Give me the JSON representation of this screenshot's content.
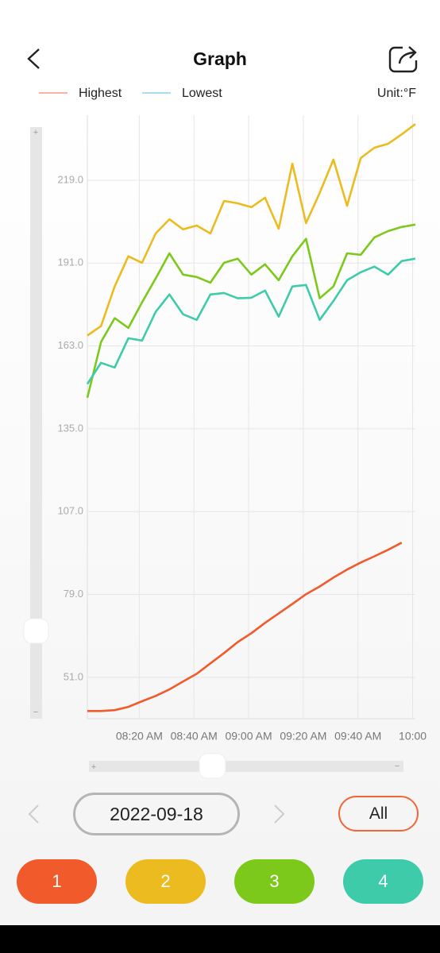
{
  "header": {
    "title": "Graph"
  },
  "legend": {
    "items": [
      {
        "label": "Highest",
        "color": "#f9b3a0"
      },
      {
        "label": "Lowest",
        "color": "#a9dcef"
      }
    ],
    "unit": "Unit:°F"
  },
  "chart_data": {
    "type": "line",
    "x": [
      "08:01 AM",
      "08:06 AM",
      "08:11 AM",
      "08:16 AM",
      "08:21 AM",
      "08:26 AM",
      "08:31 AM",
      "08:36 AM",
      "08:41 AM",
      "08:46 AM",
      "08:51 AM",
      "08:56 AM",
      "09:01 AM",
      "09:06 AM",
      "09:11 AM",
      "09:16 AM",
      "09:21 AM",
      "09:26 AM",
      "09:31 AM",
      "09:36 AM",
      "09:41 AM",
      "09:46 AM",
      "09:51 AM",
      "09:56 AM",
      "10:01 AM"
    ],
    "xlim": [
      "08:01 AM",
      "10:01 AM"
    ],
    "xticks": [
      "08:20 AM",
      "08:40 AM",
      "09:00 AM",
      "09:20 AM",
      "09:40 AM",
      {
        "value": "10:00 AM",
        "label": "10:00"
      }
    ],
    "ylim": [
      37,
      241
    ],
    "yticks": [
      {
        "value": 51,
        "label": "51.0"
      },
      {
        "value": 79,
        "label": "79.0"
      },
      {
        "value": 107,
        "label": "107.0"
      },
      {
        "value": 135,
        "label": "135.0"
      },
      {
        "value": 163,
        "label": "163.0"
      },
      {
        "value": 191,
        "label": "191.0"
      },
      {
        "value": 219,
        "label": "219.0"
      }
    ],
    "grid": true,
    "series": [
      {
        "name": "1",
        "color": "#f15a2b",
        "values": [
          39.6,
          39.6,
          39.9,
          41.0,
          42.9,
          44.7,
          46.9,
          49.6,
          52.2,
          55.7,
          59.2,
          62.9,
          65.9,
          69.4,
          72.6,
          75.8,
          79.1,
          81.7,
          84.7,
          87.4,
          89.8,
          91.9,
          94.1,
          96.5,
          null
        ]
      },
      {
        "name": "2",
        "color": "#ecbb1f",
        "values": [
          166.5,
          169.7,
          183.1,
          193.3,
          191.1,
          201.0,
          205.8,
          202.4,
          203.7,
          201.0,
          212.0,
          211.2,
          209.9,
          213.1,
          202.6,
          224.6,
          204.5,
          214.7,
          226.0,
          210.4,
          226.5,
          230.0,
          231.3,
          234.5,
          238.0
        ]
      },
      {
        "name": "3",
        "color": "#7cc91b",
        "values": [
          145.5,
          164.3,
          172.4,
          169.1,
          177.7,
          185.8,
          194.3,
          187.1,
          186.3,
          184.4,
          191.1,
          192.5,
          187.1,
          190.6,
          185.2,
          193.3,
          199.2,
          179.1,
          183.1,
          194.3,
          193.8,
          199.7,
          201.8,
          203.2,
          204.0
        ]
      },
      {
        "name": "4",
        "color": "#3ecba9",
        "values": [
          150.1,
          157.3,
          155.7,
          165.6,
          164.8,
          174.5,
          180.4,
          173.7,
          171.8,
          180.4,
          180.9,
          179.1,
          179.3,
          181.7,
          172.9,
          183.1,
          183.6,
          171.8,
          178.2,
          185.2,
          187.9,
          189.8,
          187.1,
          191.7,
          192.5
        ]
      }
    ]
  },
  "controls": {
    "date": "2022-09-18",
    "all": "All"
  }
}
